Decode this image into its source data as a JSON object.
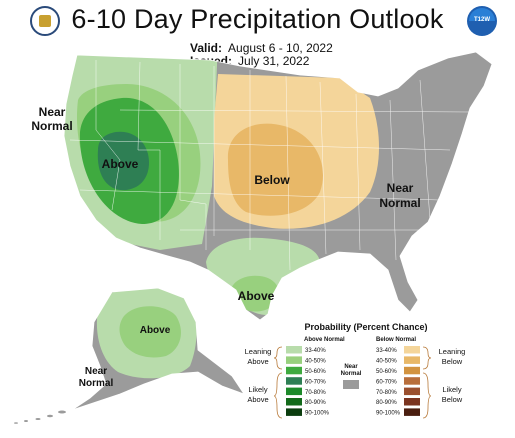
{
  "title": "6-10 Day Precipitation Outlook",
  "valid_label": "Valid:",
  "valid_value": "August 6 - 10, 2022",
  "issued_label": "Issued:",
  "issued_value": "July 31, 2022",
  "logos": {
    "left": "doc-seal-icon",
    "right": "noaa-logo-icon",
    "right_text": "T12W"
  },
  "map_labels": {
    "near_normal_west_1": "Near",
    "near_normal_west_2": "Normal",
    "above_west": "Above",
    "below_central": "Below",
    "near_normal_east_1": "Near",
    "near_normal_east_2": "Normal",
    "above_texas": "Above",
    "above_alaska": "Above",
    "near_normal_alaska_1": "Near",
    "near_normal_alaska_2": "Normal"
  },
  "legend": {
    "title": "Probability (Percent Chance)",
    "above_header": "Above Normal",
    "below_header": "Below Normal",
    "near_label_1": "Near",
    "near_label_2": "Normal",
    "leaning_above_1": "Leaning",
    "leaning_above_2": "Above",
    "likely_above_1": "Likely",
    "likely_above_2": "Above",
    "leaning_below_1": "Leaning",
    "leaning_below_2": "Below",
    "likely_below_1": "Likely",
    "likely_below_2": "Below",
    "above_bins": [
      {
        "label": "33-40%",
        "color": "#b8dcab"
      },
      {
        "label": "40-50%",
        "color": "#98d07e"
      },
      {
        "label": "50-60%",
        "color": "#3faa3f"
      },
      {
        "label": "60-70%",
        "color": "#2e7f54"
      },
      {
        "label": "70-80%",
        "color": "#1d8a2a"
      },
      {
        "label": "80-90%",
        "color": "#136a1a"
      },
      {
        "label": "90-100%",
        "color": "#0b3d0e"
      }
    ],
    "below_bins": [
      {
        "label": "33-40%",
        "color": "#f4d59a"
      },
      {
        "label": "40-50%",
        "color": "#e8b868"
      },
      {
        "label": "50-60%",
        "color": "#d29340"
      },
      {
        "label": "60-70%",
        "color": "#b86e3b"
      },
      {
        "label": "70-80%",
        "color": "#9a4f2e"
      },
      {
        "label": "80-90%",
        "color": "#7a3420"
      },
      {
        "label": "90-100%",
        "color": "#4a1e10"
      }
    ],
    "near_color": "#9b9b9b"
  }
}
